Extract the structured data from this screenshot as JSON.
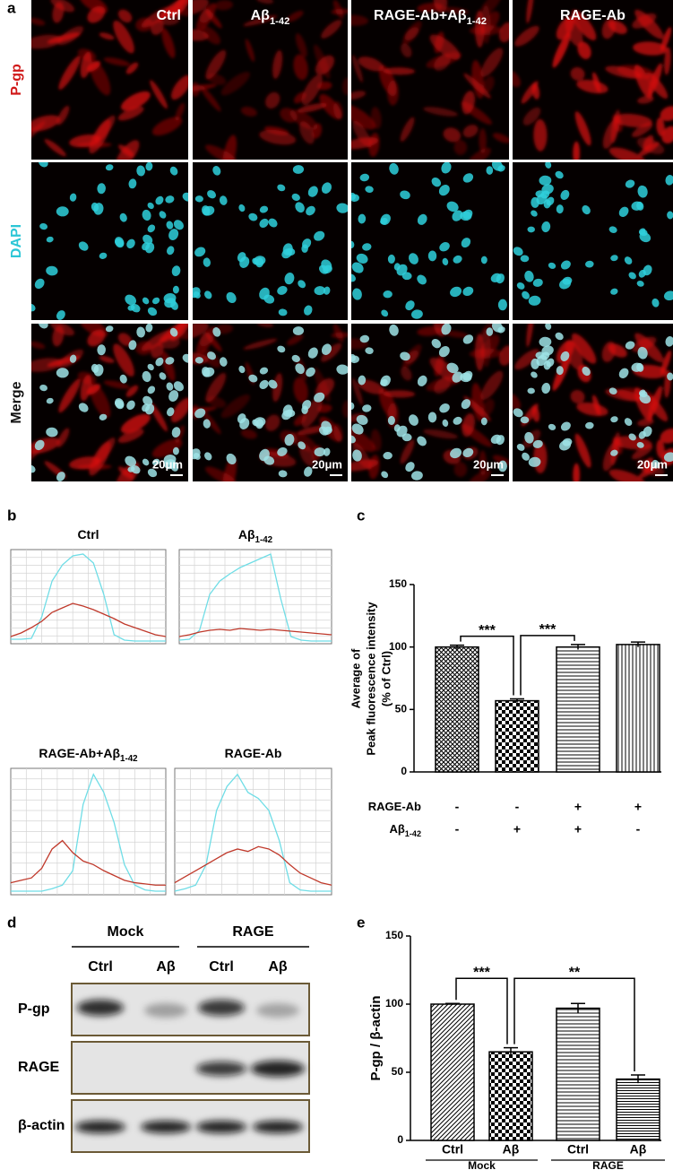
{
  "figure": {
    "panel_labels": [
      "a",
      "b",
      "c",
      "d",
      "e"
    ],
    "columns": [
      {
        "text": "Ctrl"
      },
      {
        "text": "Aβ",
        "sub": "1-42"
      },
      {
        "text": "RAGE-Ab+Aβ",
        "sub": "1-42"
      },
      {
        "text": "RAGE-Ab"
      }
    ],
    "rows": [
      "P-gp",
      "DAPI",
      "Merge"
    ],
    "scale_bar": "20μm",
    "blot": {
      "groups": [
        "Mock",
        "RAGE"
      ],
      "lanes": [
        "Ctrl",
        "Aβ",
        "Ctrl",
        "Aβ"
      ],
      "rows": [
        "P-gp",
        "RAGE",
        "β-actin"
      ]
    }
  },
  "chart_data": [
    {
      "type": "line",
      "title": {
        "text": "Ctrl"
      },
      "x": [
        0,
        2,
        4,
        6,
        8,
        10,
        12,
        14,
        16,
        18,
        20,
        22,
        24,
        26,
        28,
        30
      ],
      "xlim": [
        0,
        30
      ],
      "ylim": [
        0,
        105
      ],
      "grid": true,
      "series": [
        {
          "color": "#6fdde6",
          "values": [
            5,
            5,
            6,
            30,
            70,
            88,
            98,
            100,
            90,
            55,
            10,
            4,
            3,
            3,
            3,
            3
          ]
        },
        {
          "color": "#c0392b",
          "values": [
            8,
            12,
            18,
            25,
            35,
            40,
            45,
            42,
            38,
            33,
            28,
            22,
            18,
            14,
            10,
            8
          ]
        }
      ]
    },
    {
      "type": "line",
      "title": {
        "text": "Aβ",
        "sub": "1-42"
      },
      "x": [
        0,
        2,
        4,
        6,
        8,
        10,
        12,
        14,
        16,
        18,
        20,
        22,
        24,
        26,
        28,
        30
      ],
      "xlim": [
        0,
        30
      ],
      "ylim": [
        0,
        105
      ],
      "grid": true,
      "series": [
        {
          "color": "#6fdde6",
          "values": [
            4,
            5,
            15,
            55,
            70,
            78,
            85,
            90,
            95,
            100,
            50,
            8,
            4,
            3,
            3,
            3
          ]
        },
        {
          "color": "#c0392b",
          "values": [
            8,
            10,
            13,
            15,
            16,
            15,
            17,
            16,
            15,
            16,
            15,
            14,
            13,
            12,
            11,
            10
          ]
        }
      ]
    },
    {
      "type": "line",
      "title": {
        "text": "RAGE-Ab+Aβ",
        "sub": "1-42"
      },
      "x": [
        0,
        2,
        4,
        6,
        8,
        10,
        12,
        14,
        16,
        18,
        20,
        22,
        24,
        26,
        28,
        30
      ],
      "xlim": [
        0,
        30
      ],
      "ylim": [
        0,
        105
      ],
      "grid": true,
      "series": [
        {
          "color": "#6fdde6",
          "values": [
            3,
            3,
            3,
            3,
            5,
            8,
            20,
            75,
            100,
            85,
            60,
            25,
            8,
            4,
            3,
            3
          ]
        },
        {
          "color": "#c0392b",
          "values": [
            10,
            12,
            14,
            22,
            38,
            45,
            35,
            28,
            25,
            20,
            16,
            12,
            10,
            9,
            8,
            8
          ]
        }
      ]
    },
    {
      "type": "line",
      "title": {
        "text": "RAGE-Ab"
      },
      "x": [
        0,
        2,
        4,
        6,
        8,
        10,
        12,
        14,
        16,
        18,
        20,
        22,
        24,
        26,
        28,
        30
      ],
      "xlim": [
        0,
        30
      ],
      "ylim": [
        0,
        105
      ],
      "grid": true,
      "series": [
        {
          "color": "#6fdde6",
          "values": [
            3,
            5,
            8,
            25,
            70,
            90,
            100,
            85,
            80,
            70,
            45,
            10,
            4,
            3,
            3,
            3
          ]
        },
        {
          "color": "#c0392b",
          "values": [
            10,
            15,
            20,
            25,
            30,
            35,
            38,
            36,
            40,
            38,
            33,
            25,
            18,
            14,
            10,
            8
          ]
        }
      ]
    },
    {
      "type": "bar",
      "y_label": [
        "Average of",
        "Peak fluorescence intensity",
        "(% of Ctrl)"
      ],
      "values": [
        100,
        57,
        100,
        102
      ],
      "errors": [
        1.5,
        1.5,
        2,
        2
      ],
      "patterns": [
        "crosshatch",
        "checker",
        "hlines",
        "vlines"
      ],
      "color": "#000000",
      "ylim": [
        0,
        150
      ],
      "yticks": [
        0,
        50,
        100,
        150
      ],
      "significance": [
        {
          "pair": [
            0,
            1
          ],
          "label": "***"
        },
        {
          "pair": [
            1,
            2
          ],
          "label": "***"
        }
      ],
      "conditions": [
        {
          "name": {
            "text": "RAGE-Ab"
          },
          "signs": [
            "-",
            "-",
            "+",
            "+"
          ]
        },
        {
          "name": {
            "text": "Aβ",
            "sub": "1-42"
          },
          "signs": [
            "-",
            "+",
            "+",
            "-"
          ]
        }
      ]
    },
    {
      "type": "bar",
      "y_label": [
        "P-gp / β-actin"
      ],
      "categories": [
        "Ctrl",
        "Aβ",
        "Ctrl",
        "Aβ"
      ],
      "groups": [
        {
          "name": "Mock",
          "span": [
            0,
            1
          ]
        },
        {
          "name": "RAGE",
          "span": [
            2,
            3
          ]
        }
      ],
      "values": [
        100,
        65,
        97,
        45
      ],
      "errors": [
        0.5,
        3,
        3.5,
        3
      ],
      "patterns": [
        "diag",
        "checker",
        "hlines",
        "hlines-dense"
      ],
      "color": "#000000",
      "ylim": [
        0,
        150
      ],
      "yticks": [
        0,
        50,
        100,
        150
      ],
      "significance": [
        {
          "pair": [
            0,
            1
          ],
          "label": "***"
        },
        {
          "pair": [
            1,
            3
          ],
          "label": "**"
        }
      ]
    }
  ]
}
